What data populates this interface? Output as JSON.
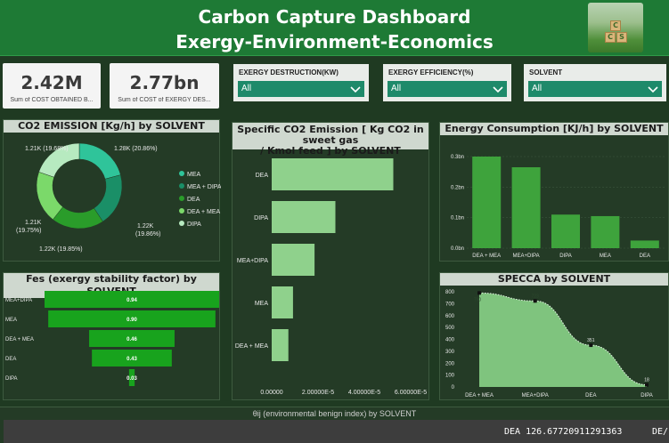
{
  "header": {
    "title_line1": "Carbon Capture Dashboard",
    "title_line2": "Exergy-Environment-Economics"
  },
  "kpis": [
    {
      "value": "2.42M",
      "label": "Sum of COST OBTAINED B..."
    },
    {
      "value": "2.77bn",
      "label": "Sum of COST of EXERGY DES..."
    }
  ],
  "slicers": [
    {
      "label": "EXERGY DESTRUCTION(KW)",
      "value": "All"
    },
    {
      "label": "EXERGY EFFICIENCY(%)",
      "value": "All"
    },
    {
      "label": "SOLVENT",
      "value": "All"
    }
  ],
  "co2_panel": {
    "title": "CO2 EMISSION [Kg/h] by SOLVENT",
    "labels": {
      "a": "1.28K (20.86%)",
      "b": "1.21K (19.68%)",
      "c_line1": "1.21K",
      "c_line2": "(19.75%)",
      "d": "1.22K (19.85%)",
      "e_line1": "1.22K",
      "e_line2": "(19.86%)"
    }
  },
  "specific_panel": {
    "title_line1": "Specific CO2 Emission [ Kg CO2 in sweet gas",
    "title_line2": "/ Kmol feed ] by SOLVENT"
  },
  "energy_panel": {
    "title": "Energy Consumption [KJ/h] by SOLVENT"
  },
  "fes_panel": {
    "title": "Fes (exergy stability factor) by SOLVENT"
  },
  "specca_panel": {
    "title": "SPECCA by SOLVENT"
  },
  "bottom_panel": {
    "title": "θij (environmental benign index) by SOLVENT",
    "text": "DEA 126.67720911291363",
    "text2": "DE/"
  },
  "logo": {
    "letters": [
      "C",
      "C",
      "S"
    ]
  },
  "colors": {
    "header": "#1e7a35",
    "background": "#1f3a22",
    "slicer": "#1e8a6a",
    "bar_light": "#8fd18c",
    "bar_mid": "#3ea33c",
    "funnel": "#18a31d"
  },
  "chart_data": [
    {
      "type": "pie",
      "title": "CO2 EMISSION [Kg/h] by SOLVENT",
      "categories": [
        "MEA",
        "MEA + DIPA",
        "DEA",
        "DEA + MEA",
        "DIPA"
      ],
      "values": [
        1280,
        1220,
        1220,
        1210,
        1210
      ],
      "percentages": [
        20.86,
        19.86,
        19.85,
        19.75,
        19.68
      ],
      "colors": [
        "#2fc49a",
        "#1a8f67",
        "#2a9c2a",
        "#7bd96a",
        "#b7eac0"
      ],
      "legend": "right"
    },
    {
      "type": "bar",
      "title": "Specific CO2 Emission [ Kg CO2 in sweet gas / Kmol feed ] by SOLVENT",
      "orientation": "horizontal",
      "categories": [
        "DEA",
        "DIPA",
        "MEA+DIPA",
        "MEA",
        "DEA + MEA"
      ],
      "values": [
        5.25e-05,
        2.75e-05,
        1.85e-05,
        9.2e-06,
        7.2e-06
      ],
      "xlim": [
        0,
        6e-05
      ],
      "ticks": [
        "0.00000",
        "2.00000E-5",
        "4.00000E-5",
        "6.00000E-5"
      ],
      "tick_values": [
        0,
        2e-05,
        4e-05,
        6e-05
      ]
    },
    {
      "type": "bar",
      "title": "Energy Consumption [KJ/h] by SOLVENT",
      "categories": [
        "DEA + MEA",
        "MEA+DIPA",
        "DIPA",
        "MEA",
        "DEA"
      ],
      "values": [
        0.3,
        0.265,
        0.11,
        0.105,
        0.025
      ],
      "ylim": [
        0,
        0.3
      ],
      "ticks": [
        "0.3bn",
        "0.2bn",
        "0.1bn",
        "0.0bn"
      ],
      "tick_values": [
        0.3,
        0.2,
        0.1,
        0
      ]
    },
    {
      "type": "bar",
      "title": "Fes (exergy stability factor) by SOLVENT",
      "orientation": "funnel",
      "categories": [
        "MEA+DIPA",
        "MEA",
        "DEA + MEA",
        "DEA",
        "DIPA"
      ],
      "values": [
        0.94,
        0.9,
        0.46,
        0.43,
        0.03
      ],
      "labels": [
        "0.94",
        "0.90",
        "0.46",
        "0.43",
        "0.03"
      ]
    },
    {
      "type": "area",
      "title": "SPECCA by SOLVENT",
      "categories": [
        "DEA + MEA",
        "MEA+DIPA",
        "DEA",
        "DIPA"
      ],
      "values": [
        790,
        723,
        351,
        18
      ],
      "point_labels": [
        "790",
        "723",
        "351",
        "18"
      ],
      "ylim": [
        0,
        800
      ],
      "ticks": [
        "800",
        "700",
        "600",
        "500",
        "400",
        "300",
        "200",
        "100",
        "0"
      ],
      "tick_values": [
        800,
        700,
        600,
        500,
        400,
        300,
        200,
        100,
        0
      ]
    }
  ]
}
